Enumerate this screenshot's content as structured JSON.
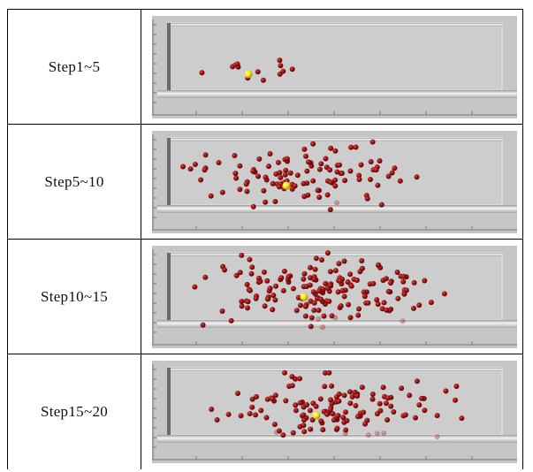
{
  "table": {
    "rows": [
      {
        "label": "Step1~5"
      },
      {
        "label": "Step5~10"
      },
      {
        "label": "Step10~15"
      },
      {
        "label": "Step15~20"
      }
    ]
  }
}
